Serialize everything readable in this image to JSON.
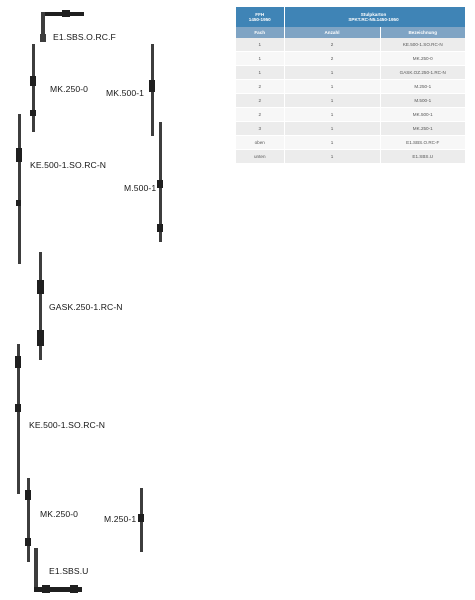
{
  "labels": {
    "e1_top": "E1.SBS.O.RC.F",
    "mk250_top": "MK.250-0",
    "mk500": "MK.500-1",
    "ke500_top": "KE.500-1.SO.RC-N",
    "m500": "M.500-1",
    "gask": "GASK.250-1.RC-N",
    "ke500_bottom": "KE.500-1.SO.RC-N",
    "mk250_bottom": "MK.250-0",
    "m250": "M.250-1",
    "e1_bottom": "E1.SBS.U"
  },
  "table": {
    "header_ffh": "FFH",
    "header_ffh_range": "1450-1950",
    "header_stulp": "Stulpkarton",
    "header_stulp_code": "SPKT.RC-N5.1450-1950",
    "col_fach": "Fach",
    "col_anzahl": "Anzahl",
    "col_bezeichnung": "Bezeichnung",
    "rows": [
      {
        "fach": "1",
        "anzahl": "2",
        "bezeichnung": "KE.500-1.SO.RC-N"
      },
      {
        "fach": "1",
        "anzahl": "2",
        "bezeichnung": "MK.250-0"
      },
      {
        "fach": "1",
        "anzahl": "1",
        "bezeichnung": "GASK.OZ.250-1.RC-N"
      },
      {
        "fach": "2",
        "anzahl": "1",
        "bezeichnung": "M.250-1"
      },
      {
        "fach": "2",
        "anzahl": "1",
        "bezeichnung": "M.500-1"
      },
      {
        "fach": "2",
        "anzahl": "1",
        "bezeichnung": "MK.500-1"
      },
      {
        "fach": "3",
        "anzahl": "1",
        "bezeichnung": "MK.250-1"
      },
      {
        "fach": "oben",
        "anzahl": "1",
        "bezeichnung": "E1.SBS.O.RC-F"
      },
      {
        "fach": "unten",
        "anzahl": "1",
        "bezeichnung": "E1.SBS.U"
      }
    ]
  },
  "colors": {
    "header_blue": "#3f84b6",
    "subheader_blue": "#7fa4c4",
    "row_grey": "#ececec"
  }
}
